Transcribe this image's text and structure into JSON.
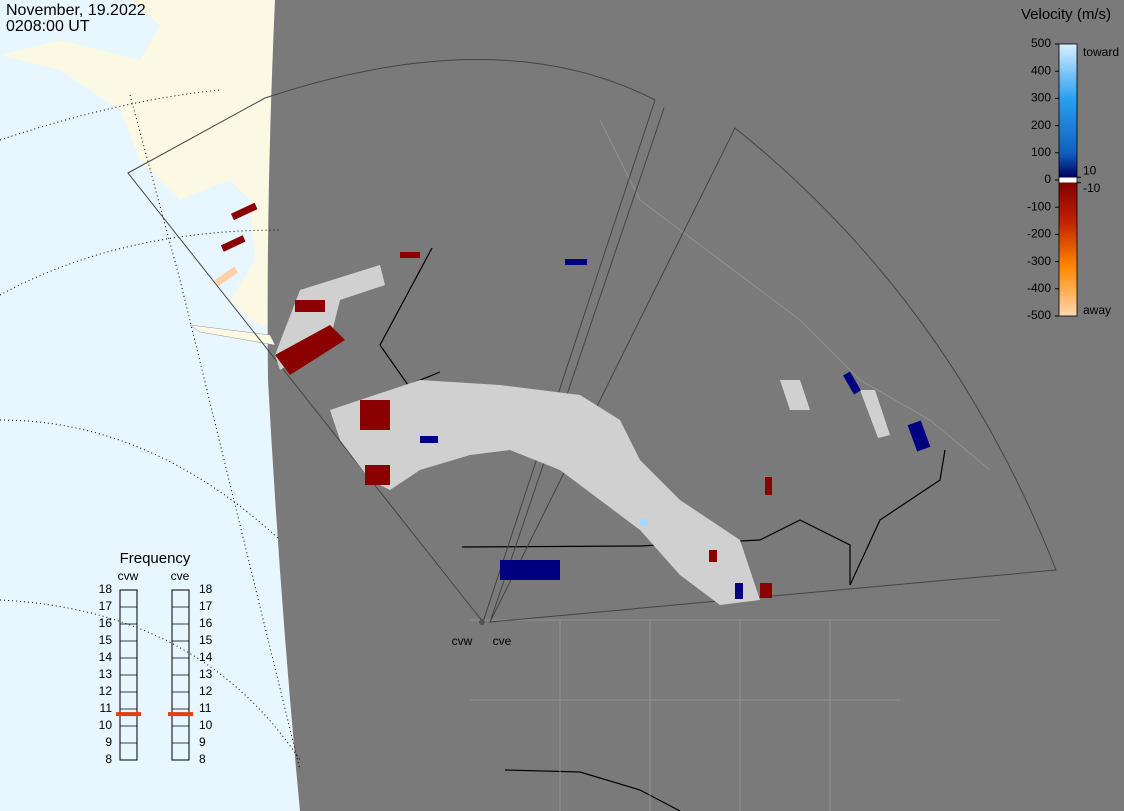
{
  "header": {
    "date": "November, 19.2022",
    "time": "0208:00 UT"
  },
  "colorbar": {
    "title": "Velocity (m/s)",
    "range": [
      -500,
      500
    ],
    "ticks": [
      500,
      400,
      300,
      200,
      100,
      0,
      -100,
      -200,
      -300,
      -400,
      -500
    ],
    "inner_ticks": [
      10,
      -10
    ],
    "top_label": "toward",
    "bottom_label": "away"
  },
  "frequency": {
    "title": "Frequency",
    "range": [
      8,
      18
    ],
    "ticks": [
      8,
      9,
      10,
      11,
      12,
      13,
      14,
      15,
      16,
      17,
      18
    ],
    "radars": [
      {
        "name": "cvw",
        "value": 10.7
      },
      {
        "name": "cve",
        "value": 10.7
      }
    ]
  },
  "map": {
    "radar_labels": [
      "cvw",
      "cve"
    ]
  }
}
